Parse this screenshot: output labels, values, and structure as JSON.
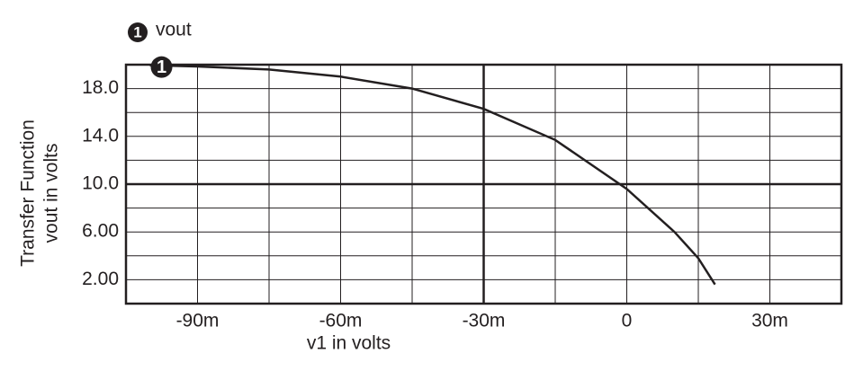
{
  "chart_data": {
    "type": "line",
    "xlabel": "v1 in volts",
    "ylabel": [
      "Transfer Function",
      "vout in volts"
    ],
    "xlim": [
      -0.105,
      0.045
    ],
    "ylim": [
      0,
      20
    ],
    "xticks": [
      {
        "value": -0.09,
        "label": "-90m"
      },
      {
        "value": -0.06,
        "label": "-60m"
      },
      {
        "value": -0.03,
        "label": "-30m"
      },
      0,
      {
        "value": 0.03,
        "label": "30m"
      }
    ],
    "yticks": [
      {
        "value": 2,
        "label": "2.00"
      },
      {
        "value": 6,
        "label": "6.00"
      },
      {
        "value": 10,
        "label": "10.0"
      },
      {
        "value": 14,
        "label": "14.0"
      },
      {
        "value": 18,
        "label": "18.0"
      }
    ],
    "minor_xticks": [
      -0.075,
      -0.045,
      -0.015,
      0.015
    ],
    "minor_yticks": [
      4,
      8,
      12,
      16
    ],
    "crosshair": {
      "x": -0.03,
      "y": 10
    },
    "grid": true,
    "x": [
      -0.1,
      -0.09,
      -0.075,
      -0.06,
      -0.045,
      -0.03,
      -0.015,
      0,
      0.01,
      0.015,
      0.0185
    ],
    "series": [
      {
        "name": "vout",
        "marker_label": "1",
        "color": "#231f20",
        "values": [
          19.95,
          19.85,
          19.6,
          19.0,
          18.0,
          16.3,
          13.7,
          9.6,
          6.0,
          3.8,
          1.6
        ]
      }
    ]
  }
}
